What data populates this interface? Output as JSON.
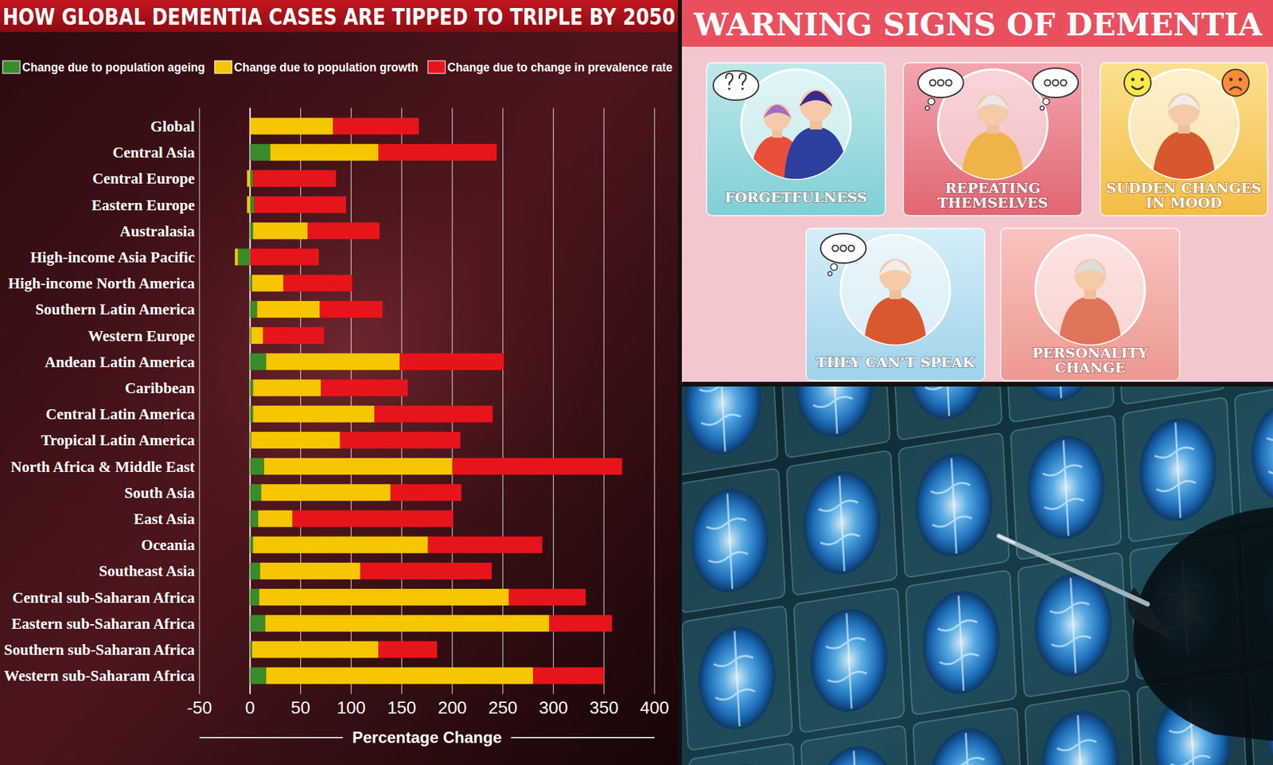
{
  "chart_data": {
    "type": "bar",
    "orientation": "horizontal",
    "stacked": true,
    "title": "HOW GLOBAL DEMENTIA CASES ARE TIPPED TO TRIPLE BY 2050",
    "xlabel": "Percentage Change",
    "categories": [
      "Global",
      "Central Asia",
      "Central Europe",
      "Eastern Europe",
      "Australasia",
      "High-income Asia Pacific",
      "High-income North America",
      "Southern Latin America",
      "Western Europe",
      "Andean Latin America",
      "Caribbean",
      "Central Latin America",
      "Tropical Latin America",
      "North Africa & Middle East",
      "South Asia",
      "East Asia",
      "Oceania",
      "Southeast Asia",
      "Central sub-Saharan Africa",
      "Eastern sub-Saharan Africa",
      "Southern sub-Saharan Africa",
      "Western sub-Saharam Africa"
    ],
    "series": [
      {
        "name": "Change due to population ageing",
        "color": "#3a8c2a",
        "values": [
          0,
          20,
          3,
          4,
          3,
          -12,
          2,
          7,
          1,
          16,
          3,
          3,
          1,
          14,
          11,
          8,
          3,
          10,
          9,
          15,
          2,
          16
        ]
      },
      {
        "name": "Change due to population growth",
        "color": "#f7c600",
        "values": [
          82,
          107,
          -3,
          -3,
          54,
          -3,
          31,
          62,
          12,
          132,
          67,
          120,
          88,
          186,
          128,
          34,
          173,
          99,
          247,
          281,
          125,
          264
        ]
      },
      {
        "name": "Change due to change in prevalence rate",
        "color": "#e8141b",
        "values": [
          85,
          117,
          82,
          91,
          71,
          68,
          68,
          62,
          60,
          103,
          86,
          117,
          119,
          168,
          70,
          159,
          113,
          130,
          76,
          62,
          58,
          70
        ]
      }
    ],
    "xlim": [
      -50,
      400
    ],
    "xticks": [
      -50,
      0,
      50,
      100,
      150,
      200,
      250,
      300,
      350,
      400
    ],
    "grid": true,
    "legend": "top"
  },
  "warning_signs": {
    "title": "WARNING SIGNS OF DEMENTIA",
    "items": [
      "FORGETFULNESS",
      "REPEATING THEMSELVES",
      "SUDDEN CHANGES IN MOOD",
      "THEY CAN’T SPEAK",
      "PERSONALITY CHANGE"
    ]
  }
}
